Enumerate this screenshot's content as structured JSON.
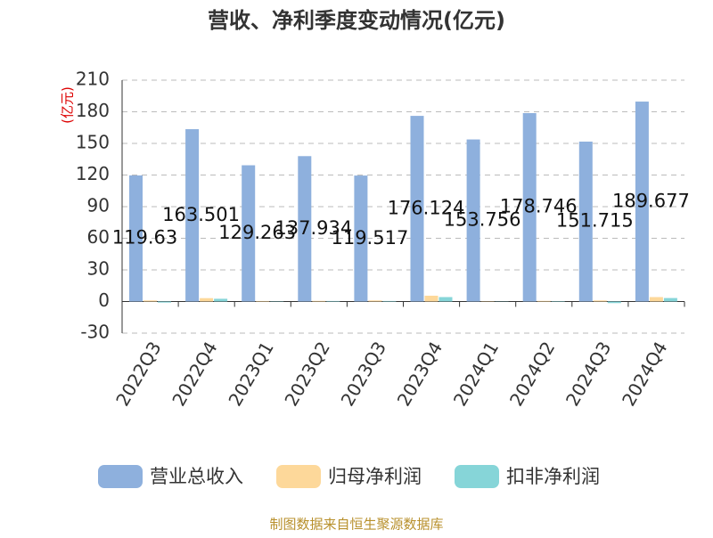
{
  "chart_data": {
    "type": "bar",
    "title": "营收、净利季度变动情况(亿元)",
    "y_label": "(亿元)",
    "categories": [
      "2022Q3",
      "2022Q4",
      "2023Q1",
      "2023Q2",
      "2023Q3",
      "2023Q4",
      "2024Q1",
      "2024Q2",
      "2024Q3",
      "2024Q4"
    ],
    "series": [
      {
        "name": "营业总收入",
        "color": "#8eb0dd",
        "values": [
          119.63,
          163.501,
          129.263,
          137.934,
          119.517,
          176.124,
          153.756,
          178.746,
          151.715,
          189.677
        ],
        "show_labels": true
      },
      {
        "name": "归母净利润",
        "color": "#fdd89a",
        "values": [
          1,
          3.2,
          0.5,
          0.6,
          1,
          5.5,
          0.3,
          0.6,
          1,
          4.2
        ],
        "show_labels": false
      },
      {
        "name": "扣非净利润",
        "color": "#86d5d8",
        "values": [
          -1,
          2.6,
          0.3,
          0.5,
          0.5,
          4.2,
          0.2,
          0.4,
          -1.5,
          3.3
        ],
        "show_labels": false
      }
    ],
    "ylim": [
      -30,
      210
    ],
    "yticks": [
      -30,
      0,
      30,
      60,
      90,
      120,
      150,
      180,
      210
    ],
    "grid": true,
    "source": "制图数据来自恒生聚源数据库"
  }
}
